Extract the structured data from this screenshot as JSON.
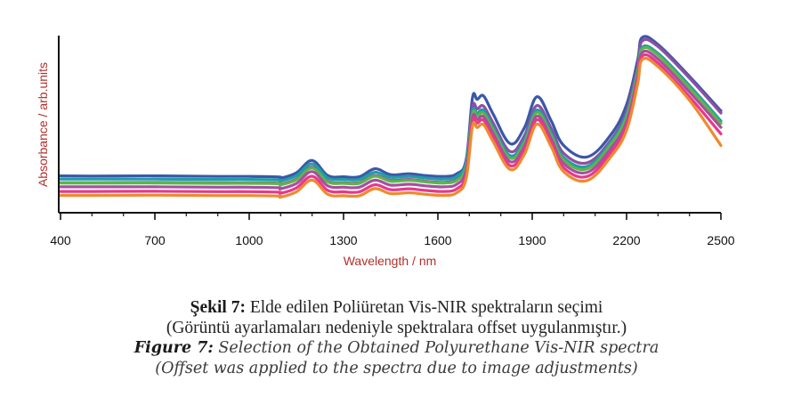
{
  "chart_data": {
    "type": "line",
    "xlabel": "Wavelength / nm",
    "ylabel": "Absorbance / arb.units",
    "xlim": [
      400,
      2500
    ],
    "ylim": [
      0,
      1
    ],
    "x_ticks": [
      "400",
      "700",
      "1000",
      "1300",
      "1600",
      "1900",
      "2200",
      "2500"
    ],
    "grid": false,
    "legend": "none",
    "x": [
      400,
      500,
      700,
      900,
      1000,
      1095,
      1100,
      1150,
      1200,
      1250,
      1300,
      1350,
      1400,
      1450,
      1510,
      1560,
      1620,
      1660,
      1690,
      1710,
      1725,
      1745,
      1775,
      1830,
      1875,
      1915,
      1960,
      2000,
      2075,
      2150,
      2200,
      2235,
      2250,
      2300,
      2400,
      2500
    ],
    "series": [
      {
        "color": "#3a58a8",
        "values": [
          0.208,
          0.207,
          0.208,
          0.205,
          0.205,
          0.202,
          0.195,
          0.225,
          0.295,
          0.21,
          0.203,
          0.203,
          0.248,
          0.215,
          0.22,
          0.21,
          0.205,
          0.22,
          0.3,
          0.65,
          0.64,
          0.66,
          0.56,
          0.39,
          0.48,
          0.655,
          0.52,
          0.38,
          0.315,
          0.44,
          0.61,
          0.86,
          0.99,
          0.95,
          0.77,
          0.575
        ]
      },
      {
        "color": "#8e4fa3",
        "values": [
          0.17,
          0.17,
          0.171,
          0.169,
          0.169,
          0.167,
          0.161,
          0.19,
          0.258,
          0.178,
          0.17,
          0.17,
          0.21,
          0.183,
          0.188,
          0.178,
          0.172,
          0.188,
          0.268,
          0.595,
          0.586,
          0.602,
          0.51,
          0.345,
          0.435,
          0.605,
          0.478,
          0.336,
          0.282,
          0.41,
          0.575,
          0.83,
          0.97,
          0.938,
          0.76,
          0.563
        ]
      },
      {
        "color": "#1e9ea6",
        "values": [
          0.19,
          0.19,
          0.19,
          0.188,
          0.188,
          0.185,
          0.179,
          0.209,
          0.276,
          0.196,
          0.188,
          0.188,
          0.228,
          0.2,
          0.205,
          0.196,
          0.19,
          0.205,
          0.285,
          0.57,
          0.562,
          0.578,
          0.485,
          0.322,
          0.41,
          0.58,
          0.452,
          0.312,
          0.262,
          0.398,
          0.555,
          0.8,
          0.935,
          0.9,
          0.718,
          0.518
        ]
      },
      {
        "color": "#5fb44a",
        "values": [
          0.168,
          0.168,
          0.168,
          0.166,
          0.166,
          0.164,
          0.158,
          0.186,
          0.252,
          0.174,
          0.166,
          0.166,
          0.206,
          0.178,
          0.183,
          0.174,
          0.168,
          0.183,
          0.262,
          0.555,
          0.546,
          0.562,
          0.47,
          0.308,
          0.395,
          0.565,
          0.437,
          0.298,
          0.248,
          0.385,
          0.54,
          0.79,
          0.925,
          0.89,
          0.705,
          0.505
        ]
      },
      {
        "color": "#a64fa0",
        "values": [
          0.146,
          0.146,
          0.146,
          0.144,
          0.144,
          0.141,
          0.135,
          0.165,
          0.232,
          0.152,
          0.144,
          0.144,
          0.184,
          0.156,
          0.161,
          0.152,
          0.146,
          0.161,
          0.24,
          0.535,
          0.526,
          0.542,
          0.45,
          0.288,
          0.375,
          0.545,
          0.418,
          0.278,
          0.228,
          0.362,
          0.512,
          0.765,
          0.905,
          0.868,
          0.682,
          0.482
        ]
      },
      {
        "color": "#e8388a",
        "values": [
          0.12,
          0.12,
          0.121,
          0.119,
          0.119,
          0.116,
          0.11,
          0.14,
          0.206,
          0.126,
          0.118,
          0.118,
          0.158,
          0.13,
          0.135,
          0.126,
          0.12,
          0.135,
          0.215,
          0.515,
          0.506,
          0.522,
          0.43,
          0.266,
          0.352,
          0.525,
          0.398,
          0.255,
          0.205,
          0.34,
          0.49,
          0.745,
          0.885,
          0.845,
          0.655,
          0.445
        ]
      },
      {
        "color": "#ee8a2e",
        "values": [
          0.098,
          0.098,
          0.099,
          0.097,
          0.097,
          0.094,
          0.088,
          0.118,
          0.184,
          0.104,
          0.096,
          0.096,
          0.136,
          0.108,
          0.113,
          0.104,
          0.098,
          0.113,
          0.193,
          0.49,
          0.481,
          0.497,
          0.405,
          0.244,
          0.33,
          0.5,
          0.374,
          0.232,
          0.182,
          0.316,
          0.466,
          0.725,
          0.865,
          0.825,
          0.635,
          0.38
        ]
      }
    ]
  },
  "caption": {
    "tr_bold": "Şekil 7:",
    "tr_text": " Elde edilen Poliüretan Vis-NIR spektraların seçimi",
    "tr_line2": "(Görüntü ayarlamaları nedeniyle spektralara offset uygulanmıştır.)",
    "en_bold": "Figure 7:",
    "en_text": " Selection of the Obtained Polyurethane Vis-NIR spectra",
    "en_line2": "(Offset was applied to the spectra due to image adjustments)"
  }
}
